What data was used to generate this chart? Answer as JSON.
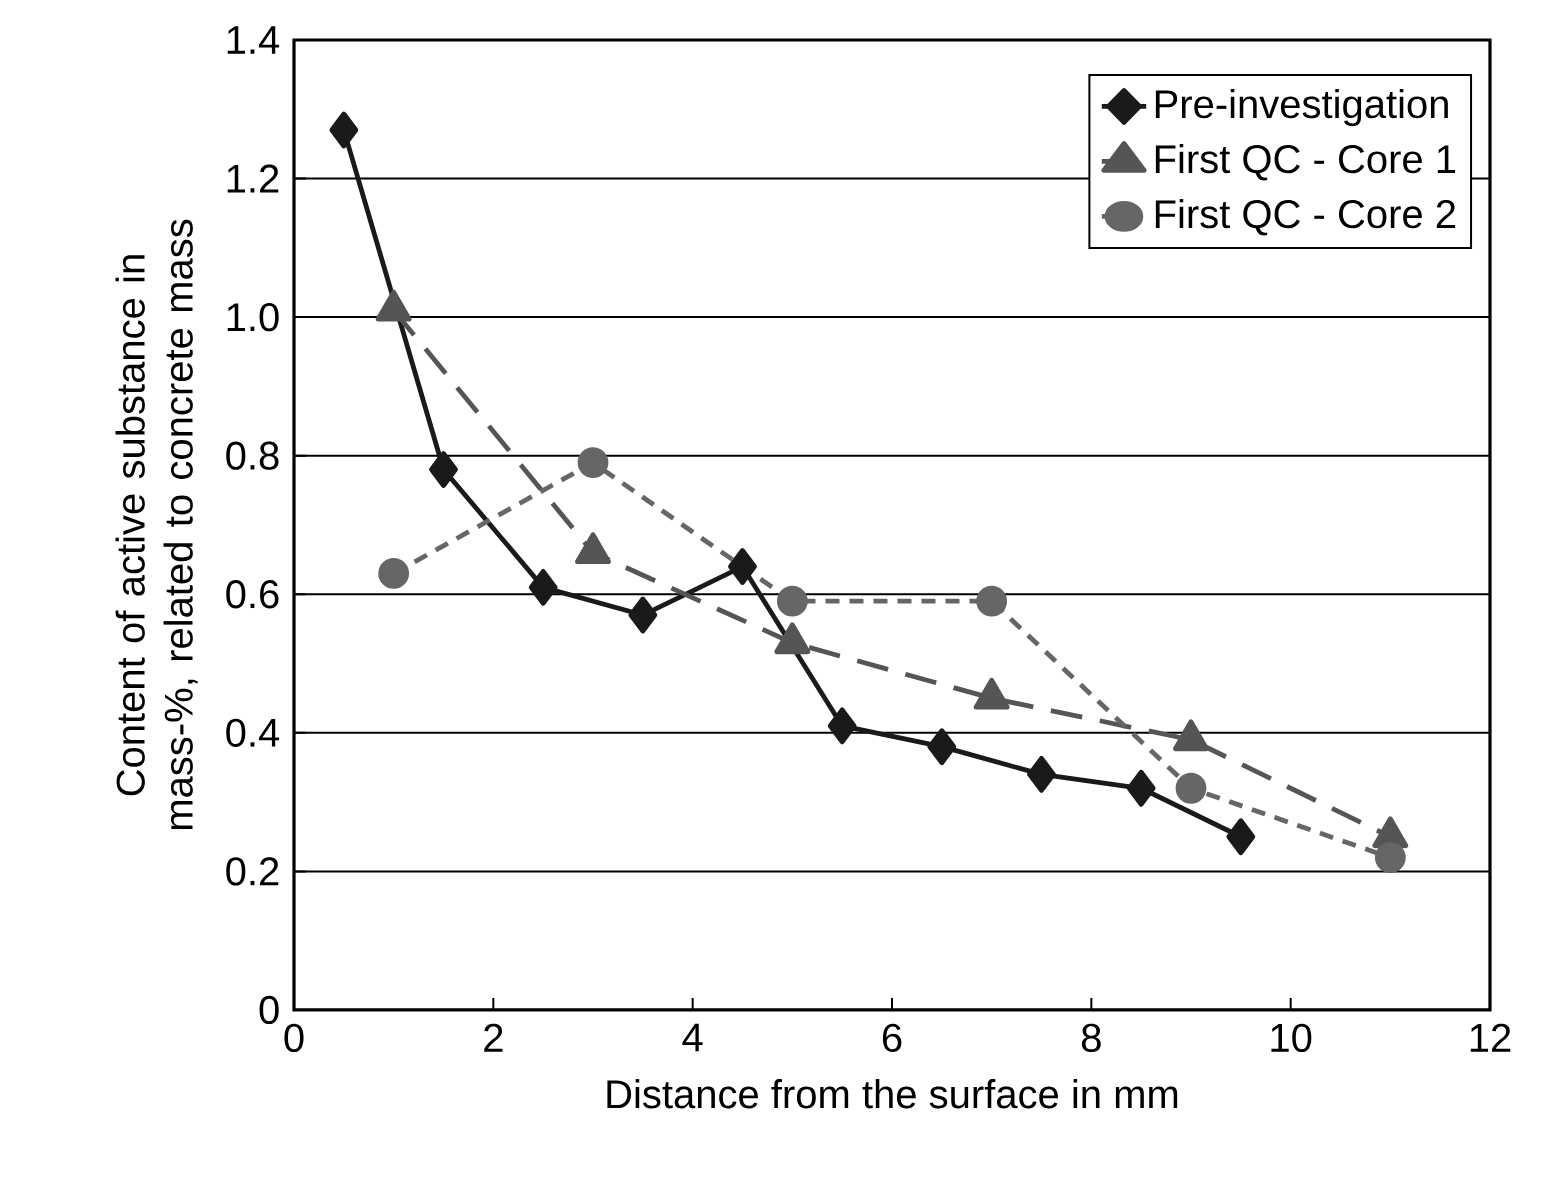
{
  "chart_data": {
    "type": "line",
    "xlabel": "Distance from the surface in mm",
    "ylabel": "Content of active substance in mass-%, related to concrete mass",
    "xlim": [
      0,
      12
    ],
    "xticks": [
      0,
      2,
      4,
      6,
      8,
      10,
      12
    ],
    "ylim": [
      0,
      1.4
    ],
    "yticks": [
      0,
      {
        "value": 0.2,
        "label": "0.2"
      },
      {
        "value": 0.4,
        "label": "0.4"
      },
      {
        "value": 0.6,
        "label": "0.6"
      },
      {
        "value": 0.8,
        "label": "0.8"
      },
      {
        "value": 1,
        "label": "1.0"
      },
      {
        "value": 1.2,
        "label": "1.2"
      },
      {
        "value": 1.4,
        "label": "1.4"
      }
    ],
    "grid": "y",
    "legend": "top right",
    "series": [
      {
        "name": "Pre-investigation",
        "color": "#1a1a1a",
        "marker": "diamond",
        "line_style": "solid",
        "x": [
          0.5,
          1.5,
          2.5,
          3.5,
          4.5,
          5.5,
          6.5,
          7.5,
          8.5,
          9.5
        ],
        "values": [
          1.27,
          0.78,
          0.61,
          0.57,
          0.64,
          0.41,
          0.38,
          0.34,
          0.32,
          0.25
        ]
      },
      {
        "name": "First QC - Core 1",
        "color": "#555555",
        "marker": "triangle",
        "line_style": "dashed",
        "x": [
          1,
          3,
          5,
          7,
          9,
          11
        ],
        "values": [
          1.01,
          0.66,
          0.53,
          0.45,
          0.39,
          0.25
        ]
      },
      {
        "name": "First QC - Core 2",
        "color": "#666666",
        "marker": "circle",
        "line_style": "dotted",
        "x": [
          1,
          3,
          5,
          7,
          9,
          11
        ],
        "values": [
          0.63,
          0.79,
          0.59,
          0.59,
          0.32,
          0.22
        ]
      }
    ]
  }
}
